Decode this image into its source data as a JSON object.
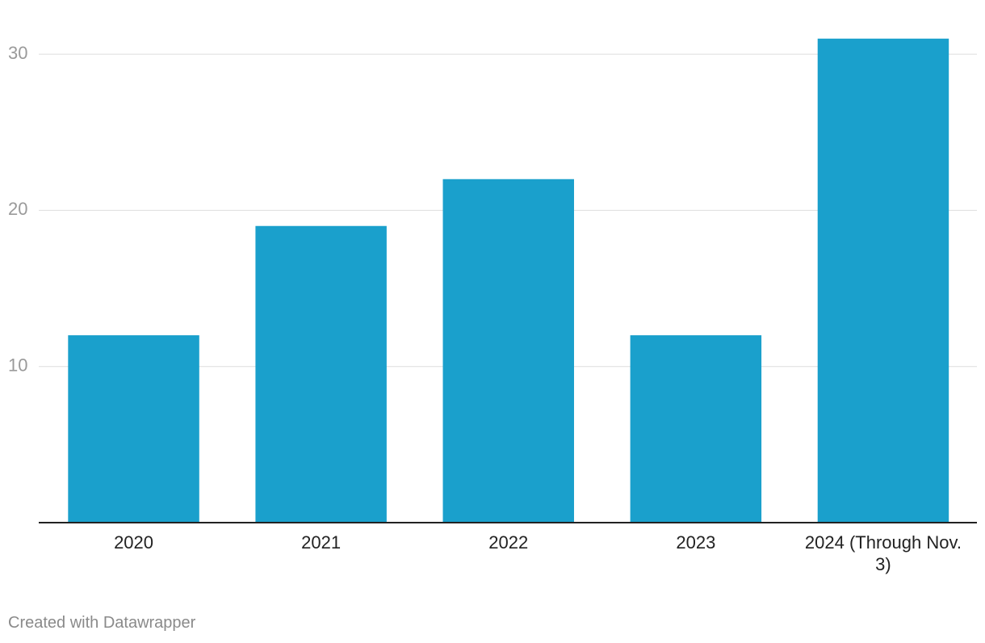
{
  "chart_data": {
    "type": "bar",
    "categories": [
      "2020",
      "2021",
      "2022",
      "2023",
      "2024 (Through Nov. 3)"
    ],
    "values": [
      12,
      19,
      22,
      12,
      31
    ],
    "color": "#1aa0cc",
    "ylim": [
      0,
      31
    ],
    "yticks": [
      10,
      20,
      30
    ],
    "grid": true,
    "credit": "Created with Datawrapper"
  }
}
